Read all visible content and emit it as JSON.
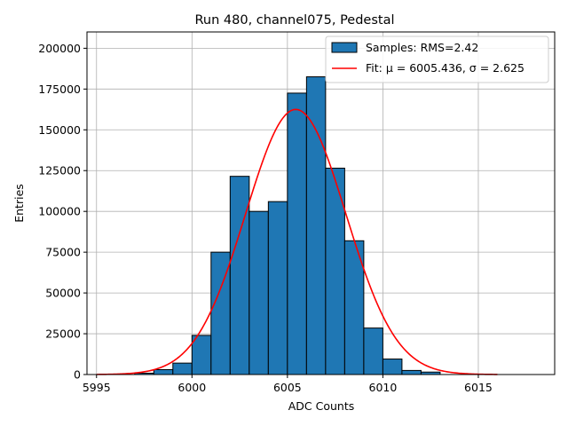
{
  "chart_data": {
    "type": "bar",
    "title": "Run 480, channel075, Pedestal",
    "xlabel": "ADC Counts",
    "ylabel": "Entries",
    "xlim": [
      5994.5,
      6019.0
    ],
    "ylim": [
      0,
      210000
    ],
    "xticks": [
      5995,
      6000,
      6005,
      6010,
      6015
    ],
    "xtick_labels": [
      "5995",
      "6000",
      "6005",
      "6010",
      "6015"
    ],
    "yticks": [
      0,
      25000,
      50000,
      75000,
      100000,
      125000,
      150000,
      175000,
      200000
    ],
    "ytick_labels": [
      "0",
      "25000",
      "50000",
      "75000",
      "100000",
      "125000",
      "150000",
      "175000",
      "200000"
    ],
    "grid": true,
    "legend_position": "upper right",
    "bin_width": 1,
    "series": [
      {
        "name": "Samples: RMS=2.42",
        "kind": "histogram",
        "color": "#1f77b4",
        "edgecolor": "#000000",
        "bin_left_edges": [
          5997,
          5998,
          5999,
          6000,
          6001,
          6002,
          6003,
          6004,
          6005,
          6006,
          6007,
          6008,
          6009,
          6010,
          6011,
          6012
        ],
        "values": [
          800,
          3000,
          7000,
          24000,
          75000,
          121500,
          100000,
          106000,
          172500,
          182500,
          126500,
          82000,
          28500,
          9500,
          2500,
          1500
        ]
      },
      {
        "name": "Fit: μ = 6005.436, σ = 2.625",
        "kind": "gaussian_fit",
        "color": "#ff0000",
        "mu": 6005.436,
        "sigma": 2.625,
        "amplitude": 162500,
        "x_range": [
          5995,
          6016
        ]
      }
    ]
  }
}
